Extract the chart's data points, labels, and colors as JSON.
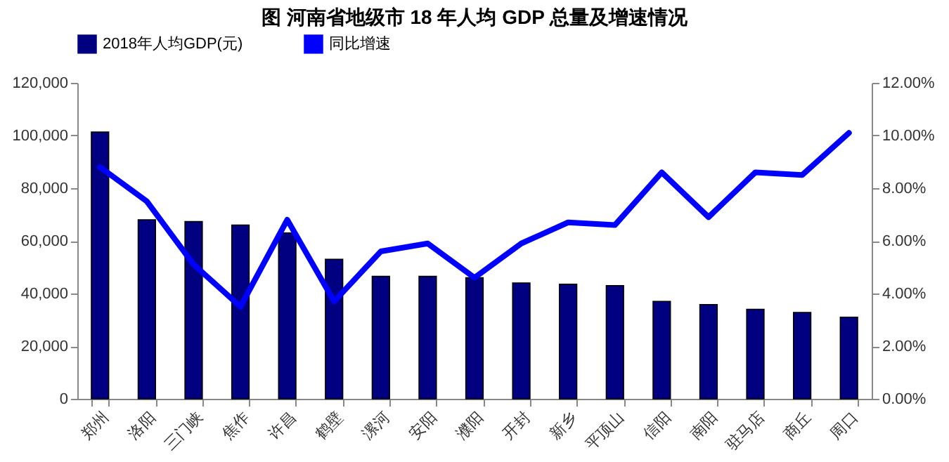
{
  "chart_data": {
    "type": "bar",
    "title": "图  河南省地级市 18 年人均 GDP 总量及增速情况",
    "categories": [
      "郑州",
      "洛阳",
      "三门峡",
      "焦作",
      "许昌",
      "鹤壁",
      "漯河",
      "安阳",
      "濮阳",
      "开封",
      "新乡",
      "平顶山",
      "信阳",
      "南阳",
      "驻马店",
      "商丘",
      "周口"
    ],
    "series": [
      {
        "name": "2018年人均GDP(元)",
        "color": "#000080",
        "values": [
          101300,
          68000,
          67300,
          66000,
          63000,
          53000,
          46500,
          46500,
          46000,
          44000,
          43500,
          43000,
          37000,
          35800,
          34000,
          32800,
          31000
        ]
      },
      {
        "name": "同比增速",
        "type": "line",
        "axis": "y2",
        "color": "#0000ff",
        "values": [
          8.8,
          7.5,
          5.1,
          3.5,
          6.8,
          3.7,
          5.6,
          5.9,
          4.6,
          5.9,
          6.7,
          6.6,
          8.6,
          6.9,
          8.6,
          8.5,
          10.1
        ]
      }
    ],
    "ylim": [
      0,
      120000
    ],
    "yticks": [
      {
        "value": 0,
        "label": "0"
      },
      {
        "value": 20000,
        "label": "20,000"
      },
      {
        "value": 40000,
        "label": "40,000"
      },
      {
        "value": 60000,
        "label": "60,000"
      },
      {
        "value": 80000,
        "label": "80,000"
      },
      {
        "value": 100000,
        "label": "100,000"
      },
      {
        "value": 120000,
        "label": "120,000"
      }
    ],
    "y2lim": [
      0,
      12
    ],
    "y2ticks": [
      {
        "value": 0,
        "label": "0.00%"
      },
      {
        "value": 2,
        "label": "2.00%"
      },
      {
        "value": 4,
        "label": "4.00%"
      },
      {
        "value": 6,
        "label": "6.00%"
      },
      {
        "value": 8,
        "label": "8.00%"
      },
      {
        "value": 10,
        "label": "10.00%"
      },
      {
        "value": 12,
        "label": "12.00%"
      }
    ],
    "grid": false,
    "legend": "top",
    "marker": "none",
    "line_style": "solid"
  }
}
